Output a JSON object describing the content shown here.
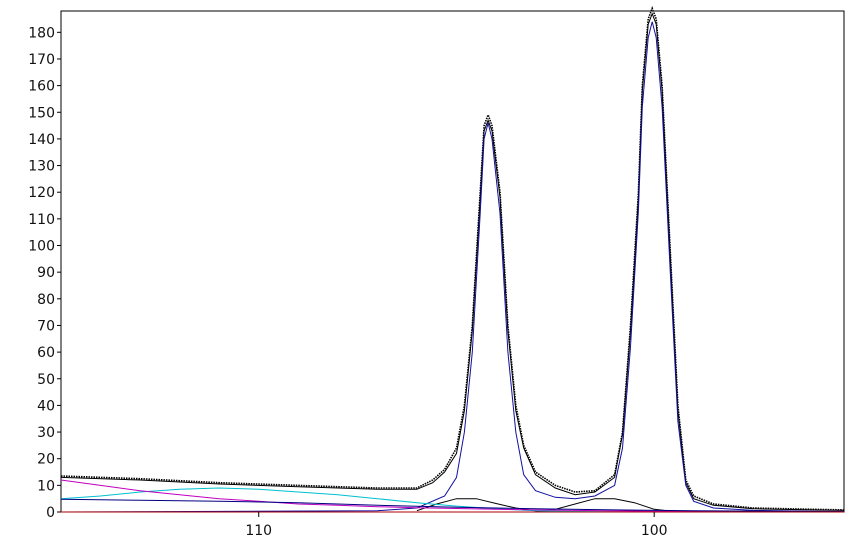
{
  "chart_data": {
    "type": "line",
    "title": "",
    "xlabel": "",
    "ylabel": "",
    "x_reversed": true,
    "xlim": [
      115,
      95.2
    ],
    "ylim": [
      0,
      188
    ],
    "x_ticks": [
      110,
      100
    ],
    "y_ticks": [
      0,
      10,
      20,
      30,
      40,
      50,
      60,
      70,
      80,
      90,
      100,
      110,
      120,
      130,
      140,
      150,
      160,
      170,
      180
    ],
    "grid": false,
    "legend": "none",
    "series": [
      {
        "role": "measured",
        "color": "#000000",
        "style": "dotted",
        "points": [
          [
            115,
            13.5
          ],
          [
            113,
            12.5
          ],
          [
            111,
            11
          ],
          [
            109,
            10
          ],
          [
            107,
            9
          ],
          [
            106,
            9
          ],
          [
            105.6,
            12
          ],
          [
            105.3,
            16
          ],
          [
            105,
            24
          ],
          [
            104.8,
            40
          ],
          [
            104.6,
            70
          ],
          [
            104.4,
            120
          ],
          [
            104.3,
            145
          ],
          [
            104.2,
            149
          ],
          [
            104.1,
            145
          ],
          [
            103.9,
            120
          ],
          [
            103.7,
            70
          ],
          [
            103.5,
            40
          ],
          [
            103.3,
            25
          ],
          [
            103,
            15
          ],
          [
            102.5,
            10
          ],
          [
            102,
            7.5
          ],
          [
            101.5,
            8
          ],
          [
            101,
            14
          ],
          [
            100.8,
            30
          ],
          [
            100.6,
            70
          ],
          [
            100.4,
            120
          ],
          [
            100.3,
            160
          ],
          [
            100.15,
            185
          ],
          [
            100.05,
            189
          ],
          [
            99.95,
            185
          ],
          [
            99.8,
            160
          ],
          [
            99.6,
            100
          ],
          [
            99.4,
            40
          ],
          [
            99.2,
            12
          ],
          [
            99,
            6
          ],
          [
            98.5,
            3
          ],
          [
            97.5,
            1.5
          ],
          [
            96,
            1
          ],
          [
            95.2,
            0.8
          ]
        ]
      },
      {
        "role": "fit-envelope",
        "color": "#000000",
        "style": "solid",
        "points": [
          [
            115,
            13
          ],
          [
            113,
            12
          ],
          [
            111,
            10.5
          ],
          [
            109,
            9.5
          ],
          [
            107,
            8.5
          ],
          [
            106,
            8.5
          ],
          [
            105.6,
            11
          ],
          [
            105.3,
            15
          ],
          [
            105,
            22
          ],
          [
            104.8,
            38
          ],
          [
            104.6,
            68
          ],
          [
            104.4,
            118
          ],
          [
            104.3,
            143
          ],
          [
            104.2,
            147
          ],
          [
            104.1,
            143
          ],
          [
            103.9,
            118
          ],
          [
            103.7,
            68
          ],
          [
            103.5,
            38
          ],
          [
            103.3,
            24
          ],
          [
            103,
            14
          ],
          [
            102.5,
            9
          ],
          [
            102,
            6.5
          ],
          [
            101.5,
            7.5
          ],
          [
            101,
            13
          ],
          [
            100.8,
            29
          ],
          [
            100.6,
            68
          ],
          [
            100.4,
            118
          ],
          [
            100.3,
            158
          ],
          [
            100.15,
            183
          ],
          [
            100.05,
            187
          ],
          [
            99.95,
            183
          ],
          [
            99.8,
            158
          ],
          [
            99.6,
            98
          ],
          [
            99.4,
            38
          ],
          [
            99.2,
            11
          ],
          [
            99,
            5
          ],
          [
            98.5,
            2.5
          ],
          [
            97.5,
            1.2
          ],
          [
            96,
            0.8
          ],
          [
            95.2,
            0.6
          ]
        ]
      },
      {
        "role": "peak-component",
        "color": "#1010a0",
        "style": "solid",
        "points": [
          [
            115,
            0
          ],
          [
            107,
            0.5
          ],
          [
            106,
            1.5
          ],
          [
            105.3,
            6
          ],
          [
            105,
            13
          ],
          [
            104.8,
            30
          ],
          [
            104.6,
            60
          ],
          [
            104.4,
            112
          ],
          [
            104.3,
            140
          ],
          [
            104.2,
            146
          ],
          [
            104.1,
            140
          ],
          [
            103.9,
            112
          ],
          [
            103.7,
            60
          ],
          [
            103.5,
            30
          ],
          [
            103.3,
            14
          ],
          [
            103,
            8
          ],
          [
            102.5,
            5.5
          ],
          [
            102,
            5
          ],
          [
            101.5,
            6
          ],
          [
            101,
            10
          ],
          [
            100.8,
            24
          ],
          [
            100.6,
            62
          ],
          [
            100.4,
            113
          ],
          [
            100.3,
            152
          ],
          [
            100.15,
            178
          ],
          [
            100.05,
            184
          ],
          [
            99.95,
            178
          ],
          [
            99.8,
            152
          ],
          [
            99.6,
            92
          ],
          [
            99.4,
            34
          ],
          [
            99.2,
            10
          ],
          [
            99,
            4
          ],
          [
            98.5,
            1.5
          ],
          [
            97.5,
            0.6
          ],
          [
            96,
            0.3
          ],
          [
            95.2,
            0.2
          ]
        ]
      },
      {
        "role": "small-component-1",
        "color": "#000000",
        "style": "solid",
        "points": [
          [
            106,
            0.5
          ],
          [
            105.5,
            3
          ],
          [
            105,
            5
          ],
          [
            104.5,
            5
          ],
          [
            104,
            3.2
          ],
          [
            103.5,
            1.5
          ],
          [
            103,
            0.5
          ],
          [
            102.5,
            0.1
          ]
        ]
      },
      {
        "role": "small-component-2",
        "color": "#000000",
        "style": "solid",
        "points": [
          [
            103,
            0.2
          ],
          [
            102.5,
            1
          ],
          [
            102,
            3
          ],
          [
            101.5,
            5
          ],
          [
            101,
            5
          ],
          [
            100.5,
            3.5
          ],
          [
            100,
            1
          ],
          [
            99.5,
            0.2
          ]
        ]
      },
      {
        "role": "broad-component",
        "color": "#00c0d0",
        "style": "solid",
        "points": [
          [
            115,
            5
          ],
          [
            114,
            6
          ],
          [
            113,
            7.5
          ],
          [
            112,
            8.5
          ],
          [
            111,
            9
          ],
          [
            110,
            8.5
          ],
          [
            109,
            7.5
          ],
          [
            108,
            6.5
          ],
          [
            107,
            5
          ],
          [
            106,
            3.5
          ],
          [
            105,
            2.2
          ],
          [
            104,
            1.2
          ],
          [
            103,
            0.5
          ],
          [
            102,
            0.2
          ],
          [
            101,
            0.1
          ]
        ]
      },
      {
        "role": "baseline-component",
        "color": "#c000c0",
        "style": "solid",
        "points": [
          [
            115,
            12
          ],
          [
            114,
            10
          ],
          [
            113,
            8
          ],
          [
            112,
            6.5
          ],
          [
            111,
            5
          ],
          [
            110,
            4
          ],
          [
            109,
            3
          ],
          [
            108,
            2.5
          ],
          [
            107,
            2
          ],
          [
            106,
            1.6
          ],
          [
            105,
            1.3
          ],
          [
            104,
            1
          ],
          [
            103,
            0.8
          ],
          [
            102,
            0.6
          ],
          [
            101,
            0.4
          ],
          [
            100,
            0.3
          ],
          [
            99,
            0.2
          ],
          [
            98,
            0.1
          ],
          [
            97,
            0.05
          ],
          [
            96,
            0
          ],
          [
            95.2,
            0
          ]
        ]
      },
      {
        "role": "linear-background",
        "color": "#000080",
        "style": "solid",
        "points": [
          [
            115,
            4.8
          ],
          [
            113,
            4.4
          ],
          [
            111,
            4
          ],
          [
            109,
            3.5
          ],
          [
            107,
            2.5
          ],
          [
            105,
            1.8
          ],
          [
            103,
            1.2
          ],
          [
            101,
            0.8
          ],
          [
            99,
            0.5
          ],
          [
            97,
            0.3
          ],
          [
            95.2,
            0.1
          ]
        ]
      },
      {
        "role": "baseline-red",
        "color": "#b00000",
        "style": "solid",
        "points": [
          [
            115,
            0
          ],
          [
            95.2,
            0
          ]
        ]
      }
    ]
  }
}
